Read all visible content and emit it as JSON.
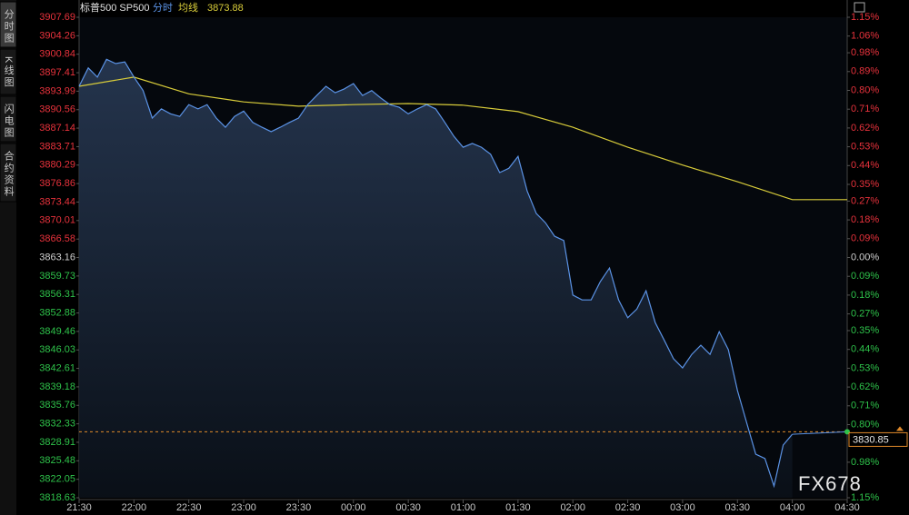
{
  "chart_data": {
    "type": "line",
    "title": "标普500 SP500",
    "sidebar": [
      "分时图",
      "K线图",
      "闪电图",
      "合约资料"
    ],
    "watermark": "FX678",
    "xticks": [
      "21:30",
      "22:00",
      "22:30",
      "23:00",
      "23:30",
      "00:00",
      "00:30",
      "01:00",
      "01:30",
      "02:00",
      "02:30",
      "03:00",
      "03:30",
      "04:00",
      "04:30"
    ],
    "xlim": [
      "21:30",
      "04:30"
    ],
    "ylim": [
      3818.63,
      3907.69
    ],
    "yticks": [
      3907.69,
      3904.26,
      3900.84,
      3897.41,
      3893.99,
      3890.56,
      3887.14,
      3883.71,
      3880.29,
      3876.86,
      3873.44,
      3870.01,
      3866.58,
      3863.16,
      3859.73,
      3856.31,
      3852.88,
      3849.46,
      3846.03,
      3842.61,
      3839.18,
      3835.76,
      3832.33,
      3828.91,
      3825.48,
      3822.05,
      3818.63
    ],
    "y2lim": [
      -1.15,
      1.15
    ],
    "y2ticks": [
      {
        "value": 1.15,
        "label": "1.15%"
      },
      {
        "value": 1.06,
        "label": "1.06%"
      },
      {
        "value": 0.98,
        "label": "0.98%"
      },
      {
        "value": 0.89,
        "label": "0.89%"
      },
      {
        "value": 0.8,
        "label": "0.80%"
      },
      {
        "value": 0.71,
        "label": "0.71%"
      },
      {
        "value": 0.62,
        "label": "0.62%"
      },
      {
        "value": 0.53,
        "label": "0.53%"
      },
      {
        "value": 0.44,
        "label": "0.44%"
      },
      {
        "value": 0.35,
        "label": "0.35%"
      },
      {
        "value": 0.27,
        "label": "0.27%"
      },
      {
        "value": 0.18,
        "label": "0.18%"
      },
      {
        "value": 0.09,
        "label": "0.09%"
      },
      {
        "value": 0,
        "label": "0.00%"
      },
      {
        "value": -0.09,
        "label": "0.09%"
      },
      {
        "value": -0.18,
        "label": "0.18%"
      },
      {
        "value": -0.27,
        "label": "0.27%"
      },
      {
        "value": -0.35,
        "label": "0.35%"
      },
      {
        "value": -0.44,
        "label": "0.44%"
      },
      {
        "value": -0.53,
        "label": "0.53%"
      },
      {
        "value": -0.62,
        "label": "0.62%"
      },
      {
        "value": -0.71,
        "label": "0.71%"
      },
      {
        "value": -0.8,
        "label": "0.80%"
      },
      {
        "value": -0.98,
        "label": "0.98%"
      },
      {
        "value": -1.15,
        "label": "1.15%"
      }
    ],
    "up_color": "#e8323c",
    "down_color": "#2ec24a",
    "last_price": 3830.85,
    "last_price_color": "#e08a2a",
    "series": [
      {
        "name": "分时",
        "color": "#5b93e6",
        "x": [
          "21:30",
          "21:35",
          "21:40",
          "21:45",
          "21:50",
          "21:55",
          "22:00",
          "22:05",
          "22:10",
          "22:15",
          "22:20",
          "22:25",
          "22:30",
          "22:35",
          "22:40",
          "22:45",
          "22:50",
          "22:55",
          "23:00",
          "23:05",
          "23:10",
          "23:15",
          "23:20",
          "23:25",
          "23:30",
          "23:35",
          "23:40",
          "23:45",
          "23:50",
          "23:55",
          "00:00",
          "00:05",
          "00:10",
          "00:15",
          "00:20",
          "00:25",
          "00:30",
          "00:35",
          "00:40",
          "00:45",
          "00:50",
          "00:55",
          "01:00",
          "01:05",
          "01:10",
          "01:15",
          "01:20",
          "01:25",
          "01:30",
          "01:35",
          "01:40",
          "01:45",
          "01:50",
          "01:55",
          "02:00",
          "02:05",
          "02:10",
          "02:15",
          "02:20",
          "02:25",
          "02:30",
          "02:35",
          "02:40",
          "02:45",
          "02:50",
          "02:55",
          "03:00",
          "03:05",
          "03:10",
          "03:15",
          "03:20",
          "03:25",
          "03:30",
          "03:35",
          "03:40",
          "03:45",
          "03:50",
          "03:55",
          "04:00"
        ],
        "values": [
          3894.9,
          3898.3,
          3896.6,
          3899.9,
          3899.1,
          3899.4,
          3896.6,
          3894.1,
          3889.0,
          3890.7,
          3889.8,
          3889.3,
          3891.5,
          3890.7,
          3891.5,
          3889.0,
          3887.3,
          3889.3,
          3890.3,
          3888.2,
          3887.3,
          3886.5,
          3887.3,
          3888.2,
          3889.0,
          3891.5,
          3893.2,
          3894.9,
          3893.7,
          3894.4,
          3895.4,
          3893.2,
          3894.1,
          3892.7,
          3891.5,
          3891.0,
          3889.8,
          3890.7,
          3891.5,
          3890.7,
          3888.2,
          3885.6,
          3883.6,
          3884.3,
          3883.6,
          3882.3,
          3878.9,
          3879.7,
          3881.9,
          3875.5,
          3871.3,
          3869.6,
          3867.1,
          3866.3,
          3856.2,
          3855.3,
          3855.3,
          3858.7,
          3861.2,
          3855.3,
          3852.0,
          3853.6,
          3857.0,
          3851.1,
          3847.8,
          3844.4,
          3842.7,
          3845.2,
          3846.9,
          3845.2,
          3849.4,
          3846.1,
          3838.5,
          3832.6,
          3826.7,
          3825.9,
          3820.8,
          3828.4,
          3830.4
        ]
      },
      {
        "name": "均线",
        "color": "#d8cc3a",
        "x": [
          "21:30",
          "22:00",
          "22:30",
          "23:00",
          "23:30",
          "00:00",
          "00:30",
          "01:00",
          "01:30",
          "02:00",
          "02:30",
          "03:00",
          "03:30",
          "04:00",
          "04:30"
        ],
        "values": [
          3894.9,
          3896.6,
          3893.5,
          3892.0,
          3891.2,
          3891.5,
          3891.7,
          3891.4,
          3890.2,
          3887.3,
          3883.6,
          3880.3,
          3877.2,
          3873.88,
          3873.88
        ]
      }
    ]
  }
}
